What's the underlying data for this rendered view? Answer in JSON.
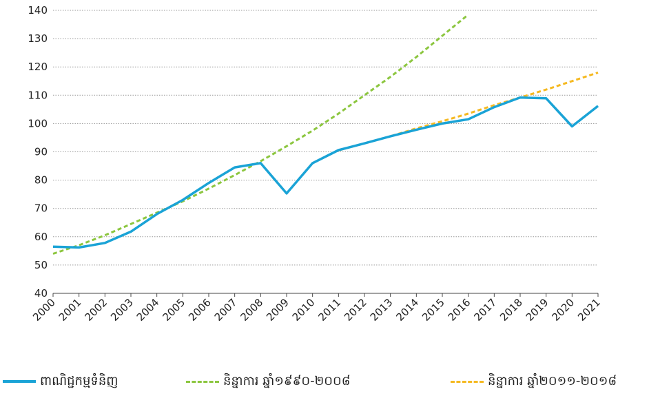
{
  "chart_data": {
    "type": "line",
    "categories": [
      "2000",
      "2001",
      "2002",
      "2003",
      "2004",
      "2005",
      "2006",
      "2007",
      "2008",
      "2009",
      "2010",
      "2011",
      "2012",
      "2013",
      "2014",
      "2015",
      "2016",
      "2017",
      "2018",
      "2019",
      "2020",
      "2021"
    ],
    "ylim": [
      40,
      140
    ],
    "yticks": [
      40,
      50,
      60,
      70,
      80,
      90,
      100,
      110,
      120,
      130,
      140
    ],
    "grid": true,
    "legend_position": "bottom",
    "series": [
      {
        "name": "ពាណិជ្ជកម្មទំនិញ",
        "color": "#1aa3d6",
        "style": "solid",
        "x": [
          "2000",
          "2001",
          "2002",
          "2003",
          "2004",
          "2005",
          "2006",
          "2007",
          "2008",
          "2009",
          "2010",
          "2011",
          "2012",
          "2013",
          "2014",
          "2015",
          "2016",
          "2017",
          "2018",
          "2019",
          "2020",
          "2021"
        ],
        "values": [
          56.5,
          56.2,
          57.8,
          61.8,
          68.0,
          73.0,
          79.0,
          84.5,
          86.0,
          75.3,
          86.0,
          90.6,
          93.0,
          95.5,
          97.8,
          100.0,
          101.5,
          105.8,
          109.2,
          108.9,
          99.0,
          106.2
        ]
      },
      {
        "name": "និន្នាការ ឆ្នាំ១៩៩០-២០០៨",
        "color": "#8cc63f",
        "style": "dashed",
        "x": [
          "2000",
          "2001",
          "2002",
          "2003",
          "2004",
          "2005",
          "2006",
          "2007",
          "2008",
          "2009",
          "2010",
          "2011",
          "2012",
          "2013",
          "2014",
          "2015",
          "2016"
        ],
        "values": [
          54.0,
          57.0,
          60.5,
          64.5,
          68.5,
          72.5,
          77.0,
          81.8,
          86.7,
          92.0,
          97.5,
          103.5,
          110.0,
          116.5,
          123.5,
          131.0,
          138.5
        ]
      },
      {
        "name": "និន្នាការ ឆ្នាំ២០១១-២០១៨",
        "color": "#f5b921",
        "style": "dashed",
        "x": [
          "2011",
          "2012",
          "2013",
          "2014",
          "2015",
          "2016",
          "2017",
          "2018",
          "2019",
          "2020",
          "2021"
        ],
        "values": [
          90.5,
          93.0,
          95.5,
          98.3,
          100.8,
          103.5,
          106.5,
          109.2,
          112.0,
          115.0,
          118.0
        ]
      }
    ]
  }
}
